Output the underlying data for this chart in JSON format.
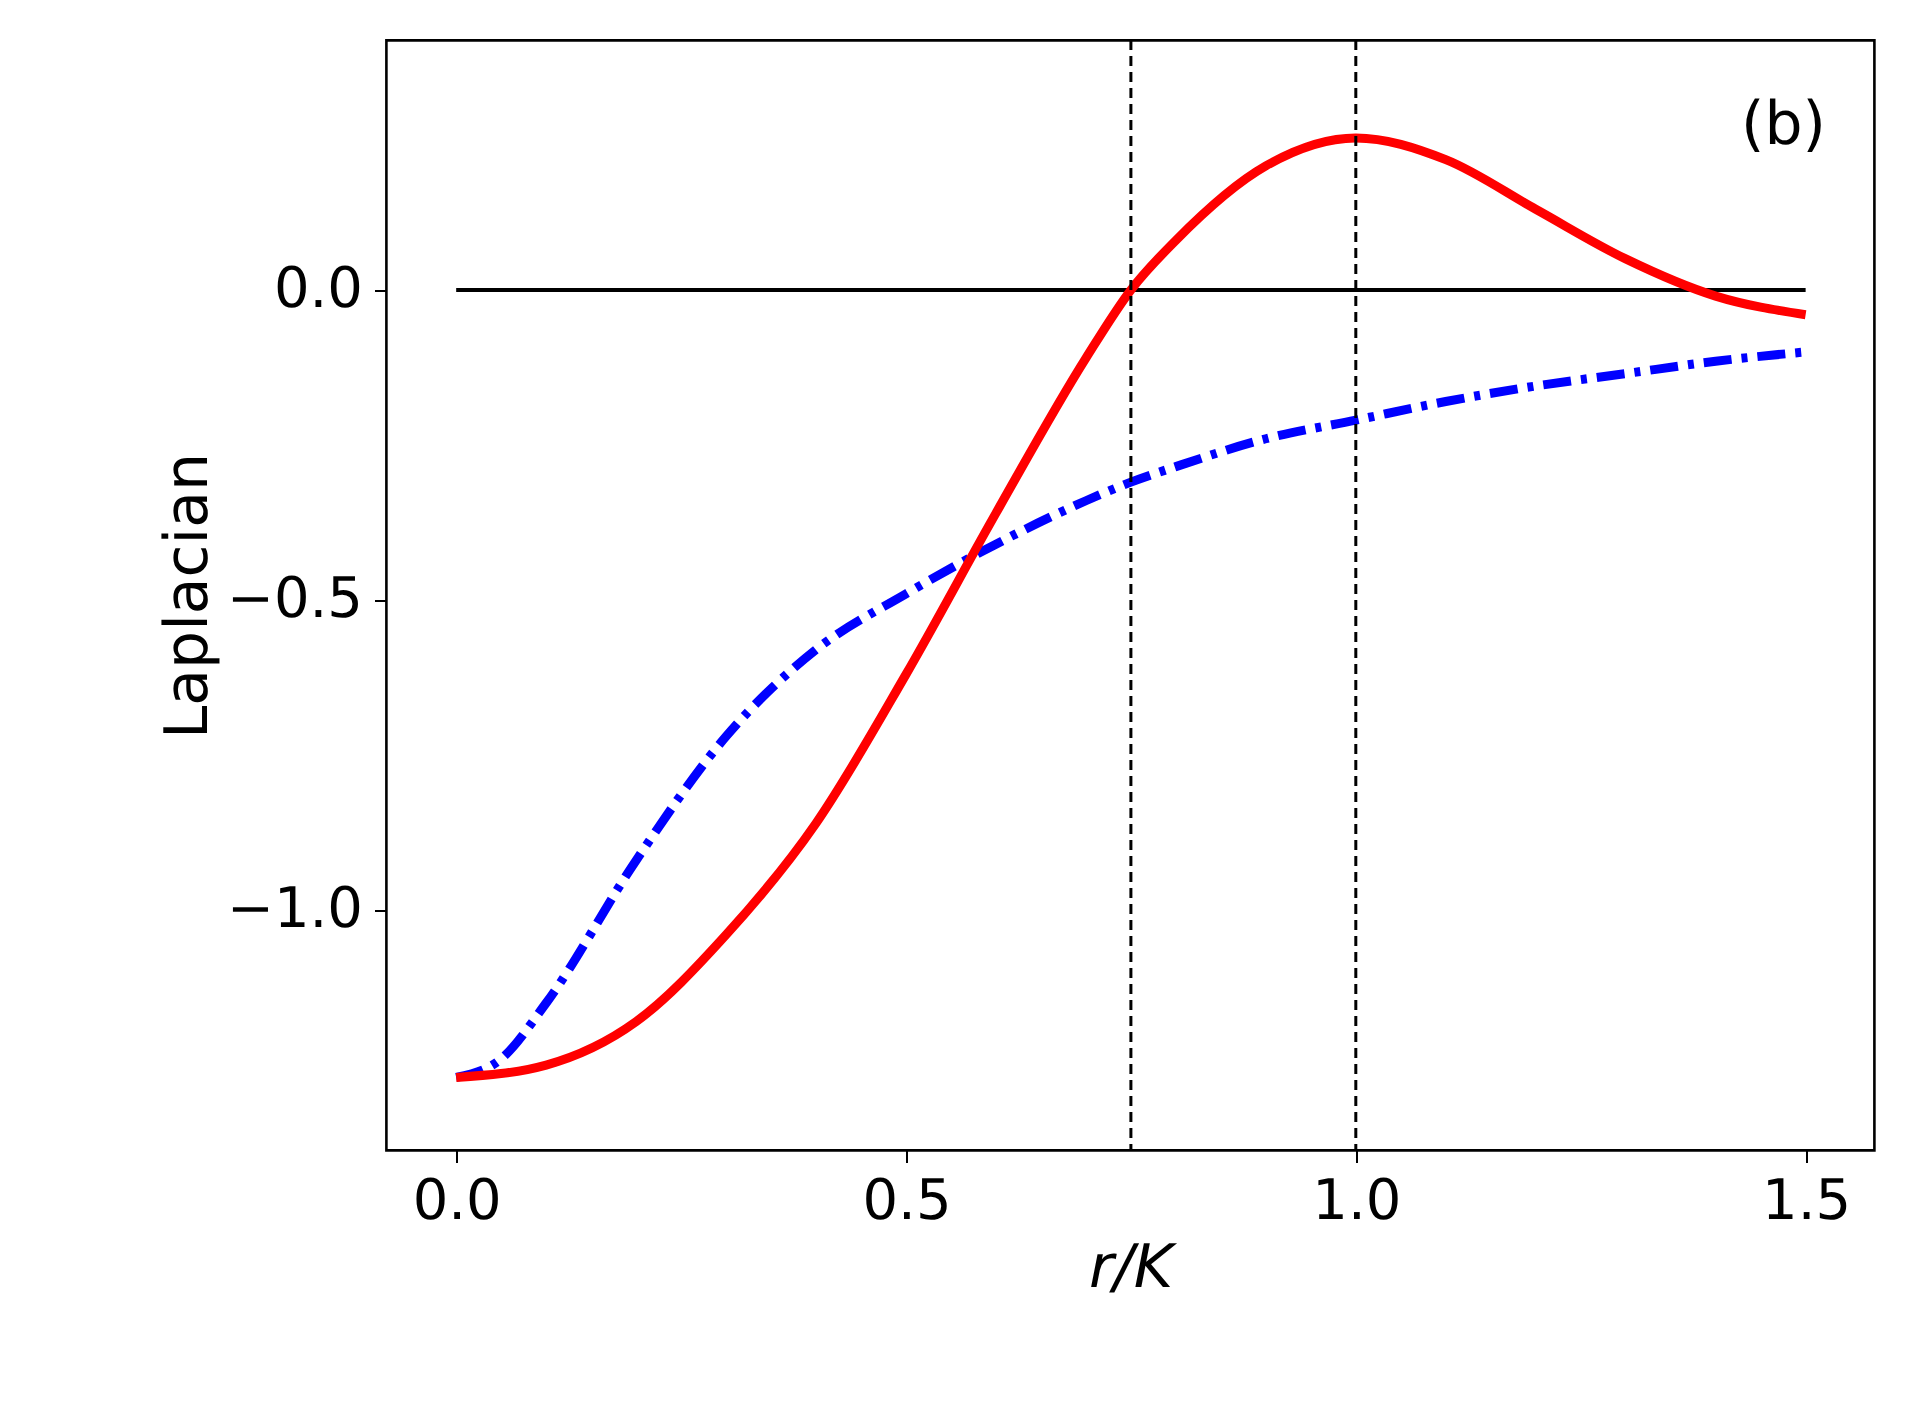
{
  "chart_data": {
    "type": "line",
    "xlabel": "r/K",
    "ylabel": "Laplacian",
    "annotations": [
      "(b)"
    ],
    "xlim": [
      -0.078,
      1.576
    ],
    "ylim": [
      -1.387,
      0.403
    ],
    "xticks": [
      {
        "value": 0,
        "label": "0.0"
      },
      {
        "value": 0.5,
        "label": "0.5"
      },
      {
        "value": 1,
        "label": "1.0"
      },
      {
        "value": 1.5,
        "label": "1.5"
      }
    ],
    "yticks": [
      {
        "value": 0,
        "label": "0.0"
      },
      {
        "value": -0.5,
        "label": "−0.5"
      },
      {
        "value": -1,
        "label": "−1.0"
      }
    ],
    "ref_lines": [
      {
        "axis": "x",
        "value": 0.75,
        "color": "#000000",
        "line_style": "dashed"
      },
      {
        "axis": "x",
        "value": 1.0,
        "color": "#000000",
        "line_style": "dashed"
      }
    ],
    "series": [
      {
        "color": "#000000",
        "line_style": "solid",
        "x": [
          0,
          1.5
        ],
        "values": [
          0,
          0
        ]
      },
      {
        "color": "#0000ff",
        "line_style": "dashed",
        "x": [
          0,
          0.05,
          0.1,
          0.2,
          0.3,
          0.4,
          0.5,
          0.6,
          0.7,
          0.75,
          0.8,
          0.9,
          1.0,
          1.1,
          1.2,
          1.3,
          1.4,
          1.5
        ],
        "values": [
          -1.27,
          -1.24,
          -1.15,
          -0.92,
          -0.72,
          -0.58,
          -0.49,
          -0.41,
          -0.34,
          -0.31,
          -0.285,
          -0.24,
          -0.21,
          -0.18,
          -0.155,
          -0.135,
          -0.115,
          -0.1
        ]
      },
      {
        "color": "#ff0000",
        "line_style": "solid",
        "x": [
          0,
          0.1,
          0.2,
          0.3,
          0.4,
          0.5,
          0.6,
          0.7,
          0.75,
          0.8,
          0.9,
          1.0,
          1.1,
          1.2,
          1.3,
          1.4,
          1.5
        ],
        "values": [
          -1.27,
          -1.25,
          -1.18,
          -1.04,
          -0.86,
          -0.62,
          -0.36,
          -0.11,
          0.0,
          0.08,
          0.2,
          0.245,
          0.21,
          0.13,
          0.05,
          -0.01,
          -0.04
        ]
      }
    ]
  }
}
